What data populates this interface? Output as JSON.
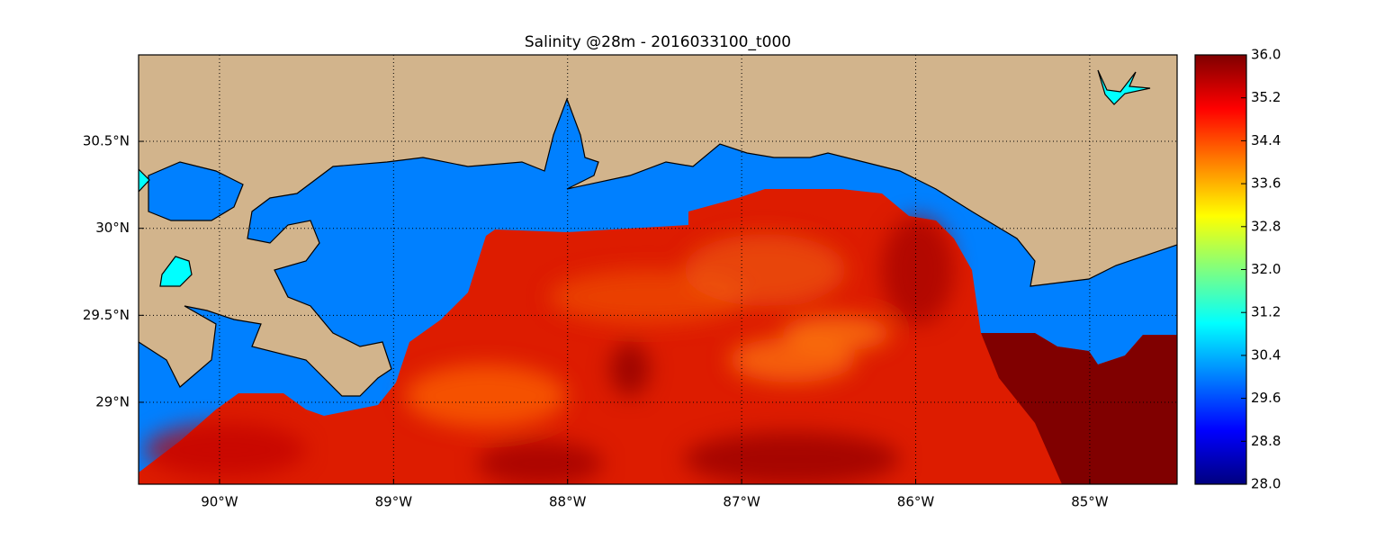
{
  "map": {
    "title": "Salinity @28m - 2016033100_t000",
    "xlim": [
      -90.465,
      -84.498
    ],
    "ylim": [
      28.529,
      30.997
    ],
    "xticks": [
      {
        "value": -90,
        "label": "90°W"
      },
      {
        "value": -89,
        "label": "89°W"
      },
      {
        "value": -88,
        "label": "88°W"
      },
      {
        "value": -87,
        "label": "87°W"
      },
      {
        "value": -86,
        "label": "86°W"
      },
      {
        "value": -85,
        "label": "85°W"
      }
    ],
    "yticks": [
      {
        "value": 30.5,
        "label": "30.5°N"
      },
      {
        "value": 30,
        "label": "30°N"
      },
      {
        "value": 29.5,
        "label": "29.5°N"
      },
      {
        "value": 29,
        "label": "29°N"
      }
    ],
    "grid": true,
    "colorbar": {
      "ticks": [
        {
          "value": 36,
          "label": "36.0"
        },
        {
          "value": 35.2,
          "label": "35.2"
        },
        {
          "value": 34.4,
          "label": "34.4"
        },
        {
          "value": 33.6,
          "label": "33.6"
        },
        {
          "value": 32.8,
          "label": "32.8"
        },
        {
          "value": 32,
          "label": "32.0"
        },
        {
          "value": 31.2,
          "label": "31.2"
        },
        {
          "value": 30.4,
          "label": "30.4"
        },
        {
          "value": 29.6,
          "label": "29.6"
        },
        {
          "value": 28.8,
          "label": "28.8"
        },
        {
          "value": 28,
          "label": "28.0"
        }
      ]
    }
  }
}
